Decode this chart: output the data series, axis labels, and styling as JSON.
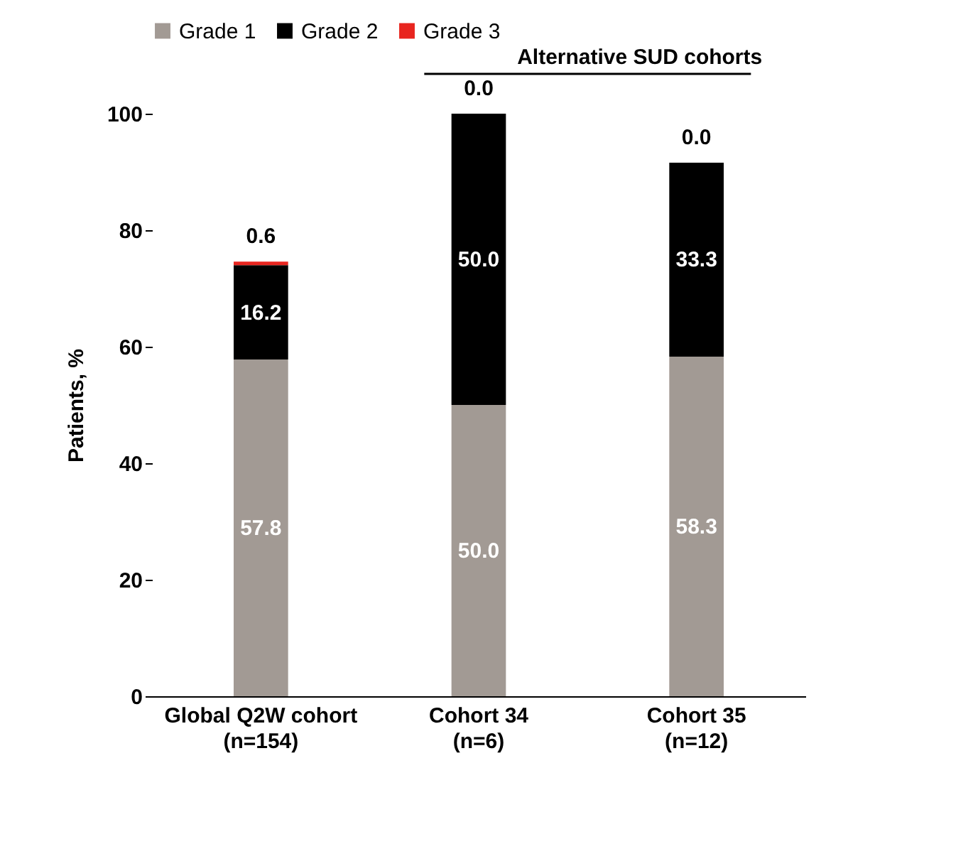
{
  "chart_data": {
    "type": "bar",
    "stacked": true,
    "categories": [
      "Global Q2W cohort\n(n=154)",
      "Cohort 34\n(n=6)",
      "Cohort 35\n(n=12)"
    ],
    "series": [
      {
        "name": "Grade 1",
        "color": "#a29a94",
        "values": [
          57.8,
          50.0,
          58.3
        ],
        "value_labels": [
          "57.8",
          "50.0",
          "58.3"
        ]
      },
      {
        "name": "Grade 2",
        "color": "#000000",
        "values": [
          16.2,
          50.0,
          33.3
        ],
        "value_labels": [
          "16.2",
          "50.0",
          "33.3"
        ]
      },
      {
        "name": "Grade 3",
        "color": "#e8251f",
        "values": [
          0.6,
          0.0,
          0.0
        ],
        "value_labels": [
          "0.6",
          "0.0",
          "0.0"
        ]
      }
    ],
    "ylabel": "Patients, %",
    "ylim": [
      0,
      100
    ],
    "yticks": [
      0,
      20,
      40,
      60,
      80,
      100
    ],
    "grid": false,
    "legend": "top",
    "annotations": [
      "Alternative SUD cohorts"
    ]
  }
}
